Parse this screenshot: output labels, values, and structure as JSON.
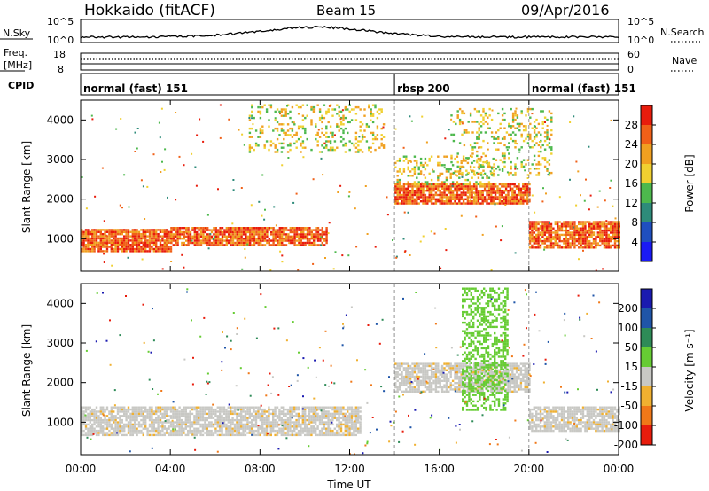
{
  "header": {
    "station": "Hokkaido (fitACF)",
    "beam": "Beam 15",
    "date": "09/Apr/2016"
  },
  "noise_panel": {
    "left_label": "N.Sky",
    "right_label": "N.Search",
    "tick_top": "10^5",
    "tick_bottom": "10^0"
  },
  "freq_panel": {
    "left_label_1": "Freq.",
    "left_label_2": "[MHz]",
    "right_label": "Nave",
    "left_ticks": [
      "18",
      "8"
    ],
    "right_ticks": [
      "60",
      "0"
    ]
  },
  "cpid_panel": {
    "label": "CPID",
    "modes": [
      {
        "name": "normal (fast) 151",
        "start": 0,
        "end": 14
      },
      {
        "name": "rbsp 200",
        "start": 14,
        "end": 20
      },
      {
        "name": "normal (fast) 151",
        "start": 20,
        "end": 24
      }
    ]
  },
  "x_axis": {
    "label": "Time UT",
    "ticks": [
      "00:00",
      "04:00",
      "08:00",
      "12:00",
      "16:00",
      "20:00",
      "00:00"
    ]
  },
  "chart_data": [
    {
      "type": "heatmap",
      "id": "power",
      "ylabel": "Slant Range [km]",
      "ylim": [
        180,
        4500
      ],
      "xlim": [
        0,
        24
      ],
      "yticks": [
        "1000",
        "2000",
        "3000",
        "4000"
      ],
      "colorbar": {
        "label": "Power [dB]",
        "ticks": [
          "4",
          "8",
          "12",
          "16",
          "20",
          "24",
          "28"
        ],
        "colors": [
          "#1a1af5",
          "#1f4fbf",
          "#2e8b7a",
          "#4db84d",
          "#f0d030",
          "#f0a020",
          "#f06018",
          "#e81c0c"
        ]
      },
      "regions": [
        {
          "t0": 0.0,
          "t1": 4.0,
          "r0": 700,
          "r1": 1250,
          "level": "strong"
        },
        {
          "t0": 4.0,
          "t1": 11.0,
          "r0": 850,
          "r1": 1300,
          "level": "strong"
        },
        {
          "t0": 14.0,
          "t1": 20.0,
          "r0": 1900,
          "r1": 2400,
          "level": "strong"
        },
        {
          "t0": 14.0,
          "t1": 18.5,
          "r0": 2400,
          "r1": 3100,
          "level": "mid"
        },
        {
          "t0": 20.0,
          "t1": 24.0,
          "r0": 800,
          "r1": 1450,
          "level": "strong"
        },
        {
          "t0": 7.5,
          "t1": 13.5,
          "r0": 3200,
          "r1": 4400,
          "level": "mid"
        },
        {
          "t0": 16.5,
          "t1": 21.0,
          "r0": 2600,
          "r1": 4300,
          "level": "mid"
        }
      ]
    },
    {
      "type": "heatmap",
      "id": "velocity",
      "ylabel": "Slant Range [km]",
      "ylim": [
        180,
        4500
      ],
      "xlim": [
        0,
        24
      ],
      "yticks": [
        "1000",
        "2000",
        "3000",
        "4000"
      ],
      "colorbar": {
        "label": "Velocity [m s⁻¹]",
        "ticks": [
          "200",
          "100",
          "50",
          "15",
          "-15",
          "-50",
          "-100",
          "-200"
        ],
        "colors": [
          "#1a1ab0",
          "#1f55a8",
          "#2e8b57",
          "#66cc33",
          "#c8c8c4",
          "#f0b030",
          "#f07818",
          "#e81c0c"
        ]
      },
      "regions": [
        {
          "t0": 0.0,
          "t1": 12.5,
          "r0": 700,
          "r1": 1400,
          "level": "ground"
        },
        {
          "t0": 14.0,
          "t1": 20.0,
          "r0": 1800,
          "r1": 2500,
          "level": "ground"
        },
        {
          "t0": 20.0,
          "t1": 24.0,
          "r0": 800,
          "r1": 1400,
          "level": "ground"
        },
        {
          "t0": 17.0,
          "t1": 19.0,
          "r0": 1300,
          "r1": 4400,
          "level": "positive"
        }
      ]
    }
  ]
}
